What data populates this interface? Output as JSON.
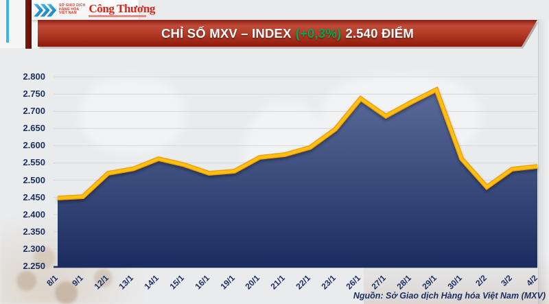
{
  "header": {
    "logo": {
      "mxv_lines": [
        "SỞ GIAO DỊCH",
        "HÀNG HÓA",
        "VIỆT NAM"
      ],
      "congthuong": "Công Thương"
    },
    "title": {
      "prefix": "CHỈ SỐ MXV – INDEX",
      "change": "(+0,3%)",
      "value": "2.540 ĐIỂM"
    }
  },
  "source_note": "Nguồn: Sở Giao dịch Hàng hóa Việt Nam (MXV)",
  "colors": {
    "banner_red": "#b23a25",
    "banner_red_dark": "#8c170b",
    "title_green": "#00a651",
    "navy_text": "#1b2f63",
    "cyan_stripe": "#38b6e9",
    "maroon_stripe": "#6f1710",
    "logo_red": "#d5281c",
    "mxv_blue": "#1e96d2",
    "background": "#eaebed"
  },
  "chart_data": {
    "type": "area",
    "title": "CHỈ SỐ MXV – INDEX (+0,3%) 2.540 ĐIỂM",
    "xlabel": "",
    "ylabel": "",
    "categories": [
      "8/1",
      "9/1",
      "12/1",
      "13/1",
      "14/1",
      "15/1",
      "16/1",
      "19/1",
      "20/1",
      "21/1",
      "22/1",
      "23/1",
      "26/1",
      "27/1",
      "28/1",
      "29/1",
      "30/1",
      "2/2",
      "3/2",
      "4/2"
    ],
    "values": [
      2448,
      2452,
      2520,
      2533,
      2562,
      2545,
      2520,
      2526,
      2566,
      2574,
      2595,
      2648,
      2737,
      2686,
      2726,
      2763,
      2562,
      2480,
      2532,
      2540
    ],
    "ylim": [
      2250,
      2800
    ],
    "ytick_step": 50,
    "ytick_labels": [
      "2.800",
      "2.750",
      "2.700",
      "2.650",
      "2.600",
      "2.550",
      "2.500",
      "2.450",
      "2.400",
      "2.350",
      "2.300",
      "2.250"
    ],
    "xlabel_rotation": -45,
    "grid": "horizontal",
    "legend": "none",
    "line_color": "#ffc013",
    "line_edge_color": "#ef9c00",
    "area_gradient": [
      "#5f6f9e",
      "#1b2d60"
    ],
    "grid_color": "#d3d6dd",
    "axis_color": "#1c2e5f"
  }
}
